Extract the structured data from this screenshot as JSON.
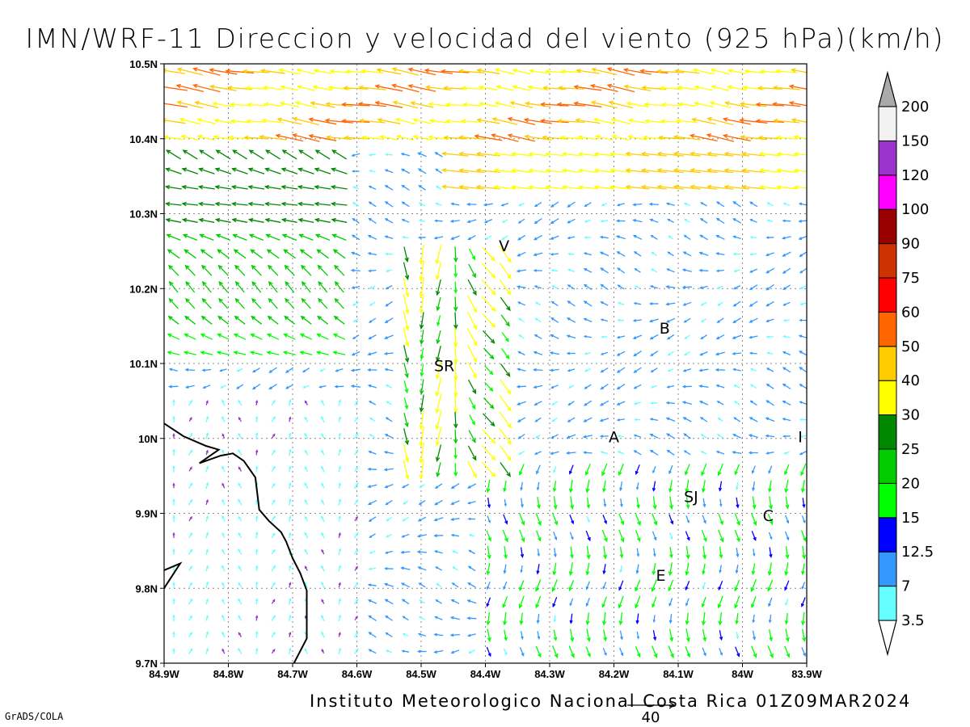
{
  "title": "IMN/WRF-11 Direccion y velocidad del viento (925 hPa)(km/h)",
  "footer": "Instituto Meteorologico Nacional Costa Rica 01Z09MAR2024",
  "credit": "GrADS/COLA",
  "reference_vector": {
    "label": "40"
  },
  "axes": {
    "lon_min": -84.9,
    "lon_max": -83.9,
    "lat_min": 9.7,
    "lat_max": 10.5,
    "x_ticks": [
      "84.9W",
      "84.8W",
      "84.7W",
      "84.6W",
      "84.5W",
      "84.4W",
      "84.3W",
      "84.2W",
      "84.1W",
      "84W",
      "83.9W"
    ],
    "y_ticks": [
      "10.5N",
      "10.4N",
      "10.3N",
      "10.2N",
      "10.1N",
      "10N",
      "9.9N",
      "9.8N",
      "9.7N"
    ],
    "grid": true
  },
  "cities": [
    {
      "label": "V",
      "lon": -84.371,
      "lat": 10.25
    },
    {
      "label": "SR",
      "lon": -84.464,
      "lat": 10.09
    },
    {
      "label": "B",
      "lon": -84.121,
      "lat": 10.14
    },
    {
      "label": "A",
      "lon": -84.2,
      "lat": 9.995
    },
    {
      "label": "I",
      "lon": -83.91,
      "lat": 9.995
    },
    {
      "label": "SJ",
      "lon": -84.08,
      "lat": 9.915
    },
    {
      "label": "C",
      "lon": -83.96,
      "lat": 9.89
    },
    {
      "label": "E",
      "lon": -84.127,
      "lat": 9.81
    }
  ],
  "colorbar": {
    "colors": [
      "#ffffff",
      "#66ffff",
      "#3399ff",
      "#0000ff",
      "#00ff00",
      "#00cc00",
      "#008800",
      "#ffff00",
      "#ffcc00",
      "#ff6600",
      "#ff0000",
      "#cc3300",
      "#990000",
      "#ff00ff",
      "#9933cc",
      "#f2f2f2",
      "#aaaaaa"
    ],
    "labels": [
      "3.5",
      "7",
      "12.5",
      "15",
      "20",
      "25",
      "30",
      "40",
      "50",
      "60",
      "75",
      "90",
      "100",
      "120",
      "150",
      "200"
    ]
  },
  "coastline": [
    [
      [
        -84.9,
        10.02
      ],
      [
        -84.87,
        10.003
      ],
      [
        -84.835,
        9.99
      ],
      [
        -84.815,
        9.985
      ],
      [
        -84.845,
        9.967
      ],
      [
        -84.812,
        9.977
      ],
      [
        -84.793,
        9.98
      ],
      [
        -84.776,
        9.97
      ],
      [
        -84.758,
        9.948
      ],
      [
        -84.752,
        9.905
      ],
      [
        -84.737,
        9.89
      ],
      [
        -84.718,
        9.875
      ],
      [
        -84.71,
        9.862
      ],
      [
        -84.7,
        9.84
      ],
      [
        -84.688,
        9.82
      ],
      [
        -84.678,
        9.797
      ],
      [
        -84.678,
        9.77
      ],
      [
        -84.678,
        9.733
      ],
      [
        -84.695,
        9.705
      ],
      [
        -84.698,
        9.7
      ]
    ],
    [
      [
        -84.9,
        9.824
      ],
      [
        -84.875,
        9.833
      ],
      [
        -84.9,
        9.8
      ]
    ]
  ]
}
